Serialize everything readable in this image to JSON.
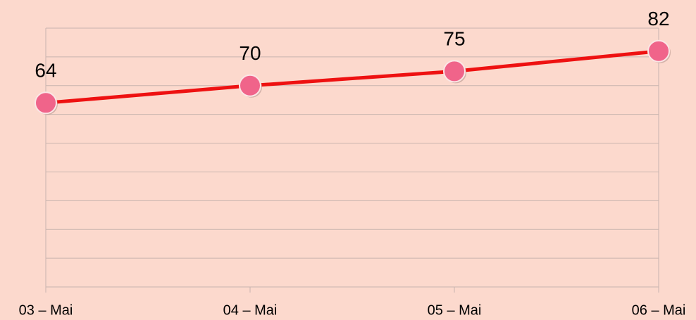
{
  "chart_data": {
    "type": "line",
    "categories": [
      "03 – Mai",
      "04 – Mai",
      "05 – Mai",
      "06 – Mai"
    ],
    "series": [
      {
        "name": null,
        "color": "#ee1111",
        "marker_color": "#f0648a",
        "values": [
          64,
          70,
          75,
          82
        ]
      }
    ],
    "ylim": [
      0,
      90
    ],
    "yticks": [
      0,
      10,
      20,
      30,
      40,
      50,
      60,
      70,
      80,
      90
    ],
    "show_ytick_labels": false,
    "grid": true,
    "data_labels": true
  }
}
